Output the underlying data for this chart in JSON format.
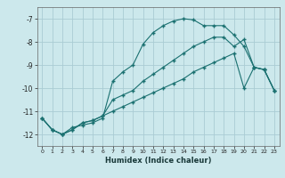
{
  "xlabel": "Humidex (Indice chaleur)",
  "bg_color": "#cce8ec",
  "grid_color": "#aaccd4",
  "line_color": "#1a7070",
  "xlim": [
    -0.5,
    23.5
  ],
  "ylim": [
    -12.5,
    -6.5
  ],
  "yticks": [
    -12,
    -11,
    -10,
    -9,
    -8,
    -7
  ],
  "xticks": [
    0,
    1,
    2,
    3,
    4,
    5,
    6,
    7,
    8,
    9,
    10,
    11,
    12,
    13,
    14,
    15,
    16,
    17,
    18,
    19,
    20,
    21,
    22,
    23
  ],
  "line1_x": [
    0,
    1,
    2,
    3,
    4,
    5,
    6,
    7,
    8,
    9,
    10,
    11,
    12,
    13,
    14,
    15,
    16,
    17,
    18,
    19,
    20,
    21,
    22,
    23
  ],
  "line1_y": [
    -11.3,
    -11.8,
    -12.0,
    -11.7,
    -11.6,
    -11.5,
    -11.3,
    -9.7,
    -9.3,
    -9.0,
    -8.1,
    -7.6,
    -7.3,
    -7.1,
    -7.0,
    -7.05,
    -7.3,
    -7.3,
    -7.3,
    -7.7,
    -8.2,
    -9.1,
    -9.2,
    -10.1
  ],
  "line2_x": [
    0,
    1,
    2,
    3,
    4,
    5,
    6,
    7,
    8,
    9,
    10,
    11,
    12,
    13,
    14,
    15,
    16,
    17,
    18,
    19,
    20,
    21,
    22,
    23
  ],
  "line2_y": [
    -11.3,
    -11.8,
    -12.0,
    -11.8,
    -11.5,
    -11.4,
    -11.2,
    -10.5,
    -10.3,
    -10.1,
    -9.7,
    -9.4,
    -9.1,
    -8.8,
    -8.5,
    -8.2,
    -8.0,
    -7.8,
    -7.8,
    -8.2,
    -7.9,
    -9.1,
    -9.2,
    -10.1
  ],
  "line3_x": [
    0,
    1,
    2,
    3,
    4,
    5,
    6,
    7,
    8,
    9,
    10,
    11,
    12,
    13,
    14,
    15,
    16,
    17,
    18,
    19,
    20,
    21,
    22,
    23
  ],
  "line3_y": [
    -11.3,
    -11.8,
    -12.0,
    -11.8,
    -11.5,
    -11.4,
    -11.2,
    -11.0,
    -10.8,
    -10.6,
    -10.4,
    -10.2,
    -10.0,
    -9.8,
    -9.6,
    -9.3,
    -9.1,
    -8.9,
    -8.7,
    -8.5,
    -10.0,
    -9.1,
    -9.2,
    -10.1
  ]
}
